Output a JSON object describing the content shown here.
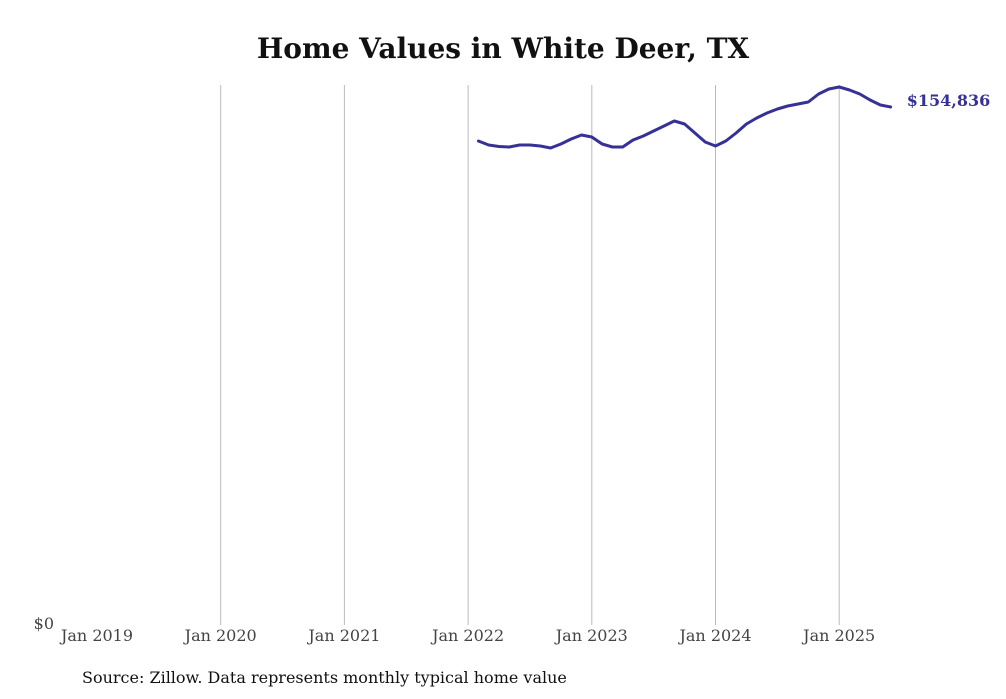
{
  "chart_data": {
    "type": "line",
    "title": "Home Values in White Deer, TX",
    "source": "Source: Zillow. Data represents monthly typical home value",
    "xlabel": "",
    "ylabel": "",
    "x_ticks": [
      "Jan 2019",
      "Jan 2020",
      "Jan 2021",
      "Jan 2022",
      "Jan 2023",
      "Jan 2024",
      "Jan 2025"
    ],
    "y_ticks": [
      "$0"
    ],
    "ylim": [
      0,
      161400
    ],
    "xlim": [
      "2019-01",
      "2025-07"
    ],
    "grid": "vertical",
    "line_color": "#363196",
    "last_label": "$154,836",
    "series": [
      {
        "name": "Typical home value",
        "x": [
          "2022-02",
          "2022-03",
          "2022-04",
          "2022-05",
          "2022-06",
          "2022-07",
          "2022-08",
          "2022-09",
          "2022-10",
          "2022-11",
          "2022-12",
          "2023-01",
          "2023-02",
          "2023-03",
          "2023-04",
          "2023-05",
          "2023-06",
          "2023-07",
          "2023-08",
          "2023-09",
          "2023-10",
          "2023-11",
          "2023-12",
          "2024-01",
          "2024-02",
          "2024-03",
          "2024-04",
          "2024-05",
          "2024-06",
          "2024-07",
          "2024-08",
          "2024-09",
          "2024-10",
          "2024-11",
          "2024-12",
          "2025-01",
          "2025-02",
          "2025-03",
          "2025-04",
          "2025-05",
          "2025-06"
        ],
        "values": [
          144670,
          143470,
          143020,
          142870,
          143470,
          143470,
          143170,
          142580,
          143770,
          145270,
          146460,
          145860,
          143770,
          142870,
          142870,
          144970,
          146160,
          147660,
          149150,
          150650,
          149750,
          147060,
          144370,
          143170,
          144670,
          147060,
          149750,
          151540,
          153040,
          154230,
          155130,
          155730,
          156330,
          158720,
          160210,
          160810,
          159910,
          158720,
          156920,
          155420,
          154836
        ]
      }
    ]
  }
}
